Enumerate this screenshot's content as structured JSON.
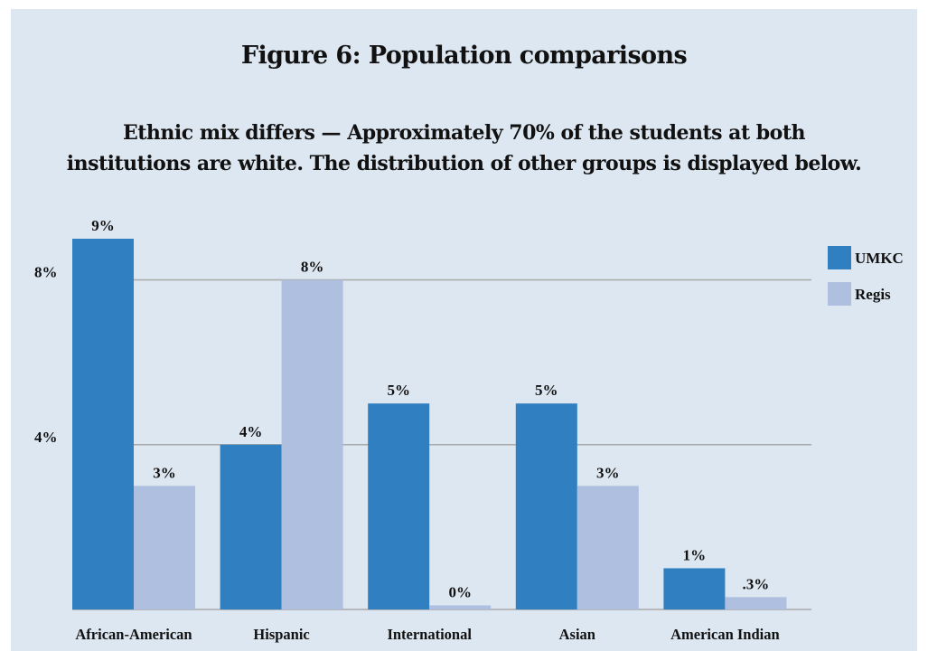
{
  "chart_data": {
    "type": "bar",
    "title": "Figure 6: Population comparisons",
    "subtitle_lines": [
      "Ethnic mix differs — Approximately 70% of the students at both",
      "institutions are white. The distribution of other groups is displayed below."
    ],
    "categories": [
      "African-American",
      "Hispanic",
      "International",
      "Asian",
      "American Indian"
    ],
    "series": [
      {
        "name": "UMKC",
        "color": "#2f7fc1",
        "values": [
          9,
          4,
          5,
          5,
          1
        ],
        "labels": [
          "9%",
          "4%",
          "5%",
          "5%",
          "1%"
        ]
      },
      {
        "name": "Regis",
        "color": "#aebfe0",
        "values": [
          3,
          8,
          0.1,
          3,
          0.3
        ],
        "labels": [
          "3%",
          "8%",
          "0%",
          "3%",
          ".3%"
        ]
      }
    ],
    "yticks": [
      {
        "value": 4,
        "label": "4%"
      },
      {
        "value": 8,
        "label": "8%"
      }
    ],
    "ylim": [
      0,
      9
    ],
    "grid": true,
    "legend": "right",
    "background": "#dde7f1",
    "gridline_color": "#a9a9a9"
  }
}
